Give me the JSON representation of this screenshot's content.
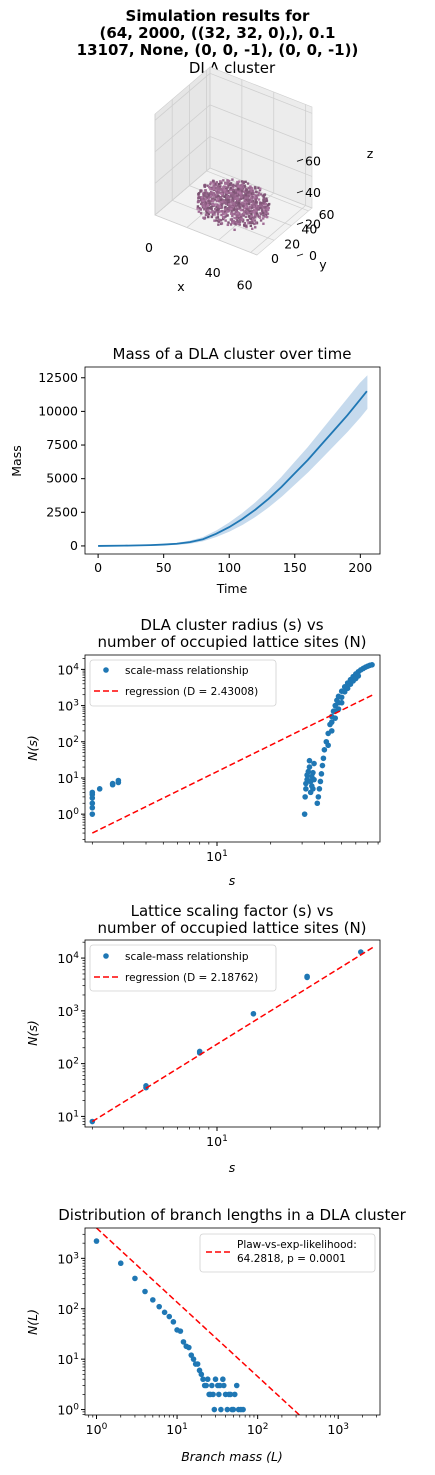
{
  "suptitle": {
    "line1": "Simulation results for",
    "line2": "(64, 2000, ((32, 32, 0),), 0.1",
    "line3": "13107, None, (0, 0, -1), (0, 0, -1))"
  },
  "colors": {
    "series": "#1f77b4",
    "band": "#aecbe6",
    "regression": "#ff0000",
    "cluster": "#9e6b93"
  },
  "chart_data": [
    {
      "type": "scatter3d",
      "title": "DLA cluster",
      "xlabel": "x",
      "ylabel": "y",
      "zlabel": "z",
      "x_ticks": [
        "0",
        "20",
        "40",
        "60"
      ],
      "y_ticks": [
        "0",
        "20",
        "40",
        "60"
      ],
      "z_ticks": [
        "0",
        "20",
        "40",
        "60"
      ],
      "xlim": [
        0,
        64
      ],
      "ylim": [
        0,
        64
      ],
      "zlim": [
        0,
        64
      ],
      "cluster": {
        "x_range": [
          12,
          52
        ],
        "y_range": [
          12,
          52
        ],
        "z_range": [
          0,
          18
        ]
      }
    },
    {
      "type": "area",
      "title": "Mass of a DLA cluster over time",
      "xlabel": "Time",
      "ylabel": "Mass",
      "xlim": [
        -10,
        215
      ],
      "ylim": [
        -600,
        13300
      ],
      "x_ticks": [
        "0",
        "50",
        "100",
        "150",
        "200"
      ],
      "y_ticks": [
        "0",
        "2500",
        "5000",
        "7500",
        "10000",
        "12500"
      ],
      "x": [
        0,
        20,
        40,
        50,
        60,
        70,
        80,
        90,
        100,
        110,
        120,
        130,
        140,
        150,
        160,
        170,
        180,
        190,
        200,
        205
      ],
      "mean": [
        0,
        20,
        60,
        100,
        160,
        280,
        500,
        900,
        1400,
        2000,
        2700,
        3500,
        4400,
        5400,
        6400,
        7500,
        8600,
        9700,
        10900,
        11500
      ],
      "lower": [
        0,
        15,
        45,
        80,
        120,
        200,
        380,
        700,
        1100,
        1600,
        2200,
        2900,
        3700,
        4600,
        5500,
        6500,
        7500,
        8500,
        9600,
        10200
      ],
      "upper": [
        0,
        25,
        75,
        120,
        200,
        360,
        620,
        1100,
        1700,
        2400,
        3200,
        4100,
        5100,
        6200,
        7300,
        8500,
        9700,
        10900,
        12100,
        12600
      ]
    },
    {
      "type": "scatter",
      "title_line1": "DLA cluster radius (s) vs",
      "title_line2": "number of occupied lattice sites (N)",
      "xlabel": "s",
      "ylabel": "N(s)",
      "xscale": "log",
      "yscale": "log",
      "xlim": [
        1.82,
        82
      ],
      "ylim": [
        0.17,
        25000
      ],
      "x_ticks": [
        "10^1"
      ],
      "y_ticks": [
        "10^0",
        "10^1",
        "10^2",
        "10^3",
        "10^4"
      ],
      "legend": {
        "position": "top-left",
        "scatter": "scale-mass relationship",
        "regression": "regression (D = 2.43008)"
      },
      "regression": {
        "x": [
          2,
          75
        ],
        "y": [
          0.3,
          2000
        ]
      },
      "points": [
        [
          2,
          1
        ],
        [
          2,
          1.5
        ],
        [
          2,
          2
        ],
        [
          2,
          2.8
        ],
        [
          2,
          3.5
        ],
        [
          2,
          4
        ],
        [
          2.2,
          5
        ],
        [
          2.6,
          6.5
        ],
        [
          2.6,
          7
        ],
        [
          2.8,
          7.5
        ],
        [
          2.8,
          8.5
        ],
        [
          31,
          1
        ],
        [
          31.2,
          3
        ],
        [
          31.5,
          5
        ],
        [
          31.5,
          7
        ],
        [
          32,
          9
        ],
        [
          32,
          12
        ],
        [
          32.5,
          15
        ],
        [
          33,
          20
        ],
        [
          33,
          30
        ],
        [
          33.5,
          4
        ],
        [
          33.5,
          8
        ],
        [
          34,
          6
        ],
        [
          34,
          11
        ],
        [
          34.5,
          5
        ],
        [
          34.5,
          14
        ],
        [
          35,
          9
        ],
        [
          35,
          25
        ],
        [
          36.5,
          2
        ],
        [
          37,
          3
        ],
        [
          37.5,
          5
        ],
        [
          38,
          8
        ],
        [
          38.5,
          13
        ],
        [
          39,
          22
        ],
        [
          39.5,
          35
        ],
        [
          40,
          60
        ],
        [
          41,
          100
        ],
        [
          42,
          170
        ],
        [
          43,
          300
        ],
        [
          44,
          500
        ],
        [
          45,
          700
        ],
        [
          46,
          1000
        ],
        [
          47,
          1400
        ],
        [
          48,
          1800
        ],
        [
          50,
          2500
        ],
        [
          52,
          3300
        ],
        [
          54,
          4200
        ],
        [
          56,
          5200
        ],
        [
          58,
          6300
        ],
        [
          60,
          7500
        ],
        [
          62,
          8600
        ],
        [
          64,
          9700
        ],
        [
          66,
          10600
        ],
        [
          68,
          11500
        ],
        [
          70,
          12300
        ],
        [
          72,
          13000
        ],
        [
          74,
          13400
        ],
        [
          44,
          350
        ],
        [
          46,
          700
        ],
        [
          48,
          1200
        ],
        [
          50,
          1700
        ],
        [
          52,
          2400
        ],
        [
          54,
          3000
        ],
        [
          56,
          3900
        ],
        [
          58,
          4800
        ],
        [
          60,
          5600
        ],
        [
          62,
          6600
        ],
        [
          42,
          80
        ],
        [
          44,
          200
        ],
        [
          46,
          450
        ],
        [
          48,
          800
        ],
        [
          50,
          1200
        ]
      ]
    },
    {
      "type": "scatter",
      "title_line1": "Lattice scaling factor (s) vs",
      "title_line2": "number of occupied lattice sites (N)",
      "xlabel": "s",
      "ylabel": "N(s)",
      "xscale": "log",
      "yscale": "log",
      "xlim": [
        1.82,
        82
      ],
      "ylim": [
        6.3,
        22000
      ],
      "x_ticks": [
        "10^1"
      ],
      "y_ticks": [
        "10^1",
        "10^2",
        "10^3",
        "10^4"
      ],
      "legend": {
        "position": "top-left",
        "scatter": "scale-mass relationship",
        "regression": "regression (D = 2.18762)"
      },
      "regression": {
        "x": [
          2,
          75
        ],
        "y": [
          8,
          16000
        ]
      },
      "points": [
        [
          2,
          8
        ],
        [
          4,
          35
        ],
        [
          4,
          38
        ],
        [
          8,
          160
        ],
        [
          8,
          170
        ],
        [
          16,
          880
        ],
        [
          32,
          4500
        ],
        [
          32,
          4300
        ],
        [
          64,
          13000
        ]
      ]
    },
    {
      "type": "scatter",
      "title": "Distribution of branch lengths in a DLA cluster",
      "xlabel": "Branch mass (L)",
      "ylabel": "N(L)",
      "xscale": "log",
      "yscale": "log",
      "xlim": [
        0.72,
        3300
      ],
      "ylim": [
        0.78,
        4000
      ],
      "x_ticks": [
        "10^0",
        "10^1",
        "10^2",
        "10^3"
      ],
      "y_ticks": [
        "10^0",
        "10^1",
        "10^2",
        "10^3"
      ],
      "legend": {
        "position": "top-right",
        "regression_line1": "Plaw-vs-exp-likelihood:",
        "regression_line2": "64.2818, p = 0.0001"
      },
      "regression": {
        "x": [
          1,
          330
        ],
        "y": [
          4000,
          0.78
        ]
      },
      "points": [
        [
          1,
          2200
        ],
        [
          2,
          800
        ],
        [
          3,
          400
        ],
        [
          4,
          220
        ],
        [
          5,
          150
        ],
        [
          6,
          110
        ],
        [
          7,
          85
        ],
        [
          8,
          70
        ],
        [
          9,
          55
        ],
        [
          10,
          38
        ],
        [
          11,
          36
        ],
        [
          12,
          22
        ],
        [
          13,
          18
        ],
        [
          14,
          17
        ],
        [
          15,
          12
        ],
        [
          16,
          10
        ],
        [
          17,
          8
        ],
        [
          18,
          8
        ],
        [
          19,
          6
        ],
        [
          20,
          5
        ],
        [
          21,
          4
        ],
        [
          22,
          3
        ],
        [
          23,
          3
        ],
        [
          24,
          4
        ],
        [
          25,
          2
        ],
        [
          26,
          2
        ],
        [
          27,
          3
        ],
        [
          28,
          2
        ],
        [
          29,
          1
        ],
        [
          30,
          4
        ],
        [
          32,
          3
        ],
        [
          33,
          2
        ],
        [
          34,
          3
        ],
        [
          35,
          1
        ],
        [
          37,
          4
        ],
        [
          38,
          3
        ],
        [
          40,
          2
        ],
        [
          42,
          1
        ],
        [
          44,
          2
        ],
        [
          46,
          2
        ],
        [
          48,
          1
        ],
        [
          50,
          1
        ],
        [
          52,
          2
        ],
        [
          55,
          3
        ],
        [
          58,
          1
        ],
        [
          62,
          1
        ],
        [
          66,
          1
        ]
      ]
    }
  ]
}
